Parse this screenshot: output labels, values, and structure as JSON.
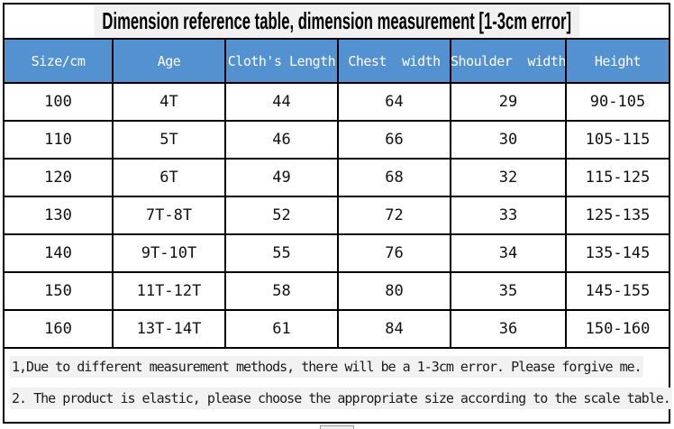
{
  "chart_data": {
    "type": "table",
    "title": "Dimension reference table, dimension measurement [1-3cm error]",
    "columns": [
      "Size/cm",
      "Age",
      "Cloth's Length",
      "Chest  width",
      "Shoulder  width",
      "Height"
    ],
    "rows": [
      [
        "100",
        "4T",
        "44",
        "64",
        "29",
        "90-105"
      ],
      [
        "110",
        "5T",
        "46",
        "66",
        "30",
        "105-115"
      ],
      [
        "120",
        "6T",
        "49",
        "68",
        "32",
        "115-125"
      ],
      [
        "130",
        "7T-8T",
        "52",
        "72",
        "33",
        "125-135"
      ],
      [
        "140",
        "9T-10T",
        "55",
        "76",
        "34",
        "135-145"
      ],
      [
        "150",
        "11T-12T",
        "58",
        "80",
        "35",
        "145-155"
      ],
      [
        "160",
        "13T-14T",
        "61",
        "84",
        "36",
        "150-160"
      ]
    ],
    "notes": [
      "1,Due to different measurement methods, there will be a 1-3cm error. Please forgive me.",
      "2. The product is elastic, please choose the appropriate size according to the scale table."
    ],
    "layout_hints": {
      "header_position": "top",
      "grid": "on"
    }
  },
  "colors": {
    "header_bg": "#5391D1",
    "header_text": "#FFFFFF",
    "grid_border": "#000000",
    "note_highlight": "#F2F2F2",
    "page_bg": "#FFFFFF"
  }
}
